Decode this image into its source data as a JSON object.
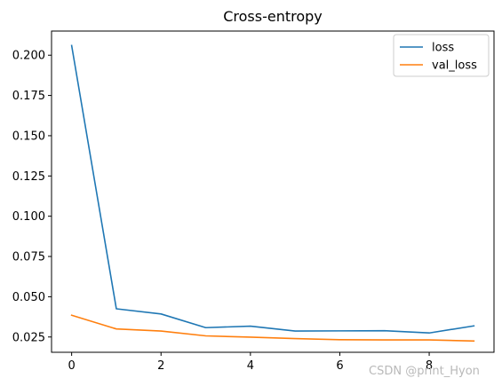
{
  "chart_data": {
    "type": "line",
    "title": "Cross-entropy",
    "xlabel": "",
    "ylabel": "",
    "x": [
      0,
      1,
      2,
      3,
      4,
      5,
      6,
      7,
      8,
      9
    ],
    "xlim": [
      -0.45,
      9.45
    ],
    "ylim": [
      0.0155,
      0.215
    ],
    "xticks": [
      0,
      2,
      4,
      6,
      8
    ],
    "yticks": [
      0.025,
      0.05,
      0.075,
      0.1,
      0.125,
      0.15,
      0.175,
      0.2
    ],
    "ytick_labels": [
      "0.025",
      "0.050",
      "0.075",
      "0.100",
      "0.125",
      "0.150",
      "0.175",
      "0.200"
    ],
    "xtick_labels": [
      "0",
      "2",
      "4",
      "6",
      "8"
    ],
    "grid": false,
    "legend_position": "top-right",
    "series": [
      {
        "name": "loss",
        "color": "#1f77b4",
        "values": [
          0.206,
          0.0425,
          0.0393,
          0.0308,
          0.0317,
          0.0287,
          0.0288,
          0.0289,
          0.0275,
          0.0319
        ]
      },
      {
        "name": "val_loss",
        "color": "#ff7f0e",
        "values": [
          0.0385,
          0.03,
          0.0287,
          0.0257,
          0.0249,
          0.024,
          0.0233,
          0.0232,
          0.0232,
          0.0225
        ]
      }
    ]
  },
  "watermark": "CSDN @print_Hyon"
}
